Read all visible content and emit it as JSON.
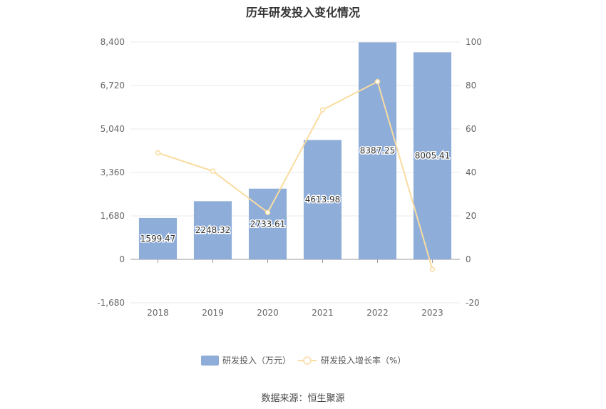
{
  "source": "数据来源：恒生聚源",
  "colors": {
    "bar": "#8eadd9",
    "line": "#f9dca0",
    "grid": "#e8e8e8",
    "axis": "#999999"
  },
  "chart_data": {
    "type": "bar",
    "title": "历年研发投入变化情况",
    "categories": [
      "2018",
      "2019",
      "2020",
      "2021",
      "2022",
      "2023"
    ],
    "series": [
      {
        "name": "研发投入（万元）",
        "type": "bar",
        "axis": "left",
        "values": [
          1599.47,
          2248.32,
          2733.61,
          4613.98,
          8387.25,
          8005.41
        ],
        "labels": [
          "1599.47",
          "2248.32",
          "2733.61",
          "4613.98",
          "8387.25",
          "8005.41"
        ]
      },
      {
        "name": "研发投入增长率（%）",
        "type": "line",
        "axis": "right",
        "values": [
          49,
          40.6,
          21.6,
          68.8,
          81.8,
          -4.6
        ]
      }
    ],
    "y_left": {
      "min": -1680,
      "max": 8400,
      "ticks": [
        -1680,
        0,
        1680,
        3360,
        5040,
        6720,
        8400
      ],
      "tick_labels": [
        "-1,680",
        "0",
        "1,680",
        "3,360",
        "5,040",
        "6,720",
        "8,400"
      ]
    },
    "y_right": {
      "min": -20,
      "max": 100,
      "ticks": [
        -20,
        0,
        20,
        40,
        60,
        80,
        100
      ],
      "tick_labels": [
        "-20",
        "0",
        "20",
        "40",
        "60",
        "80",
        "100"
      ]
    },
    "grid": true,
    "legend_position": "bottom"
  }
}
